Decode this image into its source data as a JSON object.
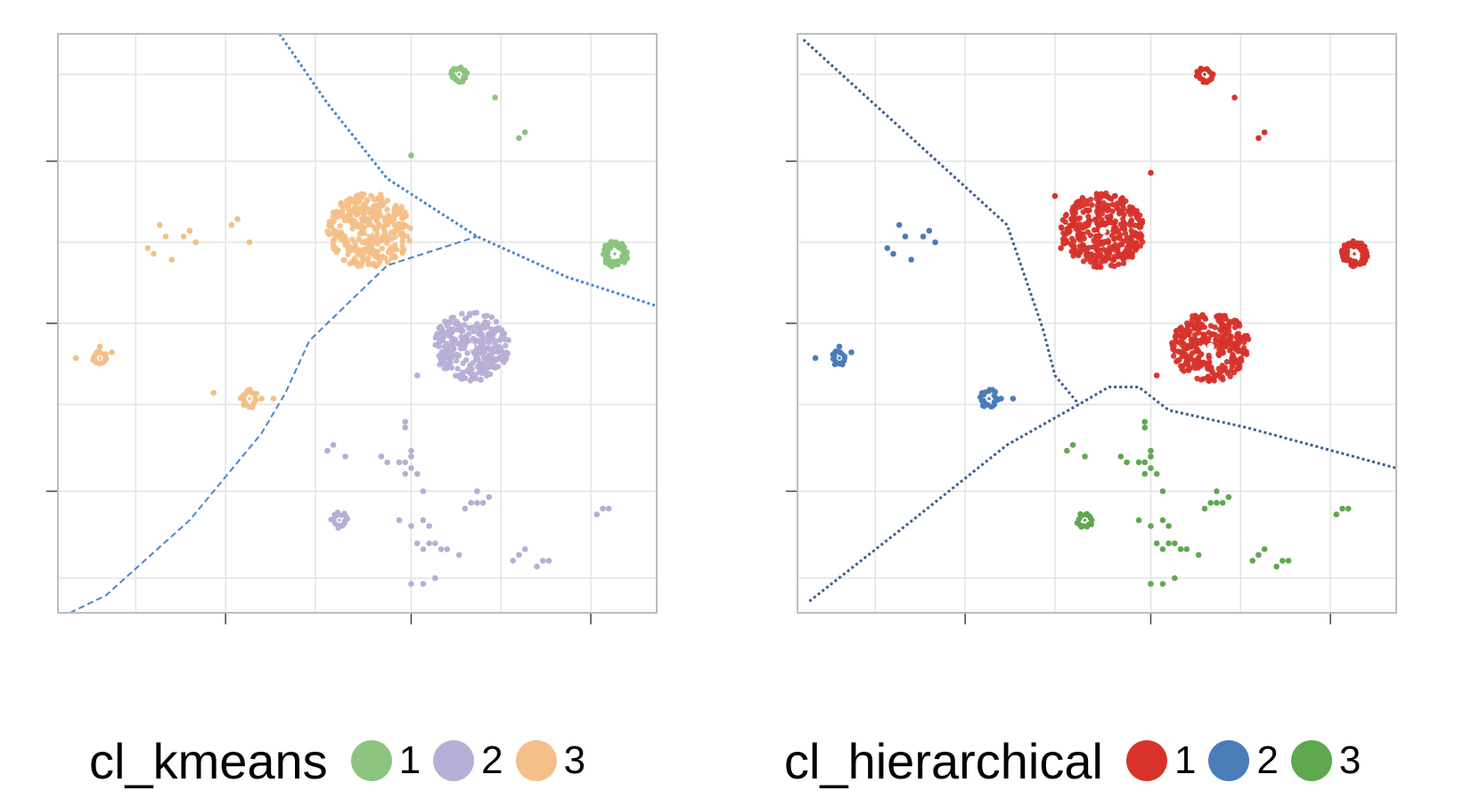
{
  "colors": {
    "kmeans_1": "#8cc47f",
    "kmeans_2": "#b7aed6",
    "kmeans_3": "#f4bf88",
    "hier_1": "#d7332b",
    "hier_2": "#4a7db8",
    "hier_3": "#5fa84f",
    "boundary": "#4a86c8",
    "boundary_dark": "#3c5f8c",
    "grid": "#e3e3e3",
    "panel_border": "#bdbdbd"
  },
  "chart_data": [
    {
      "type": "scatter",
      "title": "",
      "xlabel": "",
      "ylabel": "",
      "grid": true,
      "axis_tick_labels": "none",
      "legend": {
        "position": "bottom",
        "title": "cl_kmeans",
        "entries": [
          {
            "label": "1",
            "color": "#8cc47f"
          },
          {
            "label": "2",
            "color": "#b7aed6"
          },
          {
            "label": "3",
            "color": "#f4bf88"
          }
        ]
      },
      "clusters": [
        {
          "label": "3",
          "shape": "blob",
          "cx": 0.52,
          "cy": 0.66,
          "r": 0.07,
          "n": 350
        },
        {
          "label": "2",
          "shape": "blob",
          "cx": 0.69,
          "cy": 0.46,
          "r": 0.065,
          "n": 300
        },
        {
          "label": "1",
          "shape": "ring",
          "cx": 0.93,
          "cy": 0.62,
          "r": 0.022,
          "n": 70
        },
        {
          "label": "1",
          "shape": "ring",
          "cx": 0.67,
          "cy": 0.93,
          "r": 0.014,
          "n": 22
        },
        {
          "label": "3",
          "shape": "ring",
          "cx": 0.07,
          "cy": 0.44,
          "r": 0.013,
          "n": 18
        },
        {
          "label": "3",
          "shape": "ring",
          "cx": 0.32,
          "cy": 0.37,
          "r": 0.016,
          "n": 20
        },
        {
          "label": "2",
          "shape": "ring",
          "cx": 0.47,
          "cy": 0.16,
          "r": 0.014,
          "n": 16
        }
      ],
      "stray_points": [
        {
          "label": "1",
          "points": [
            [
              0.73,
              0.89
            ],
            [
              0.77,
              0.82
            ],
            [
              0.78,
              0.83
            ],
            [
              0.59,
              0.79
            ]
          ]
        },
        {
          "label": "3",
          "points": [
            [
              0.15,
              0.63
            ],
            [
              0.16,
              0.62
            ],
            [
              0.17,
              0.67
            ],
            [
              0.18,
              0.65
            ],
            [
              0.19,
              0.61
            ],
            [
              0.21,
              0.65
            ],
            [
              0.22,
              0.66
            ],
            [
              0.23,
              0.64
            ],
            [
              0.07,
              0.46
            ],
            [
              0.09,
              0.45
            ],
            [
              0.03,
              0.44
            ],
            [
              0.34,
              0.37
            ],
            [
              0.36,
              0.37
            ],
            [
              0.26,
              0.38
            ],
            [
              0.29,
              0.67
            ],
            [
              0.3,
              0.68
            ],
            [
              0.32,
              0.64
            ]
          ]
        },
        {
          "label": "2",
          "points": [
            [
              0.58,
              0.33
            ],
            [
              0.58,
              0.32
            ],
            [
              0.59,
              0.28
            ],
            [
              0.58,
              0.26
            ],
            [
              0.59,
              0.25
            ],
            [
              0.59,
              0.27
            ],
            [
              0.61,
              0.21
            ],
            [
              0.57,
              0.16
            ],
            [
              0.59,
              0.15
            ],
            [
              0.61,
              0.16
            ],
            [
              0.62,
              0.15
            ],
            [
              0.6,
              0.12
            ],
            [
              0.61,
              0.11
            ],
            [
              0.62,
              0.12
            ],
            [
              0.63,
              0.12
            ],
            [
              0.64,
              0.11
            ],
            [
              0.65,
              0.11
            ],
            [
              0.67,
              0.1
            ],
            [
              0.68,
              0.18
            ],
            [
              0.69,
              0.19
            ],
            [
              0.7,
              0.19
            ],
            [
              0.71,
              0.19
            ],
            [
              0.72,
              0.2
            ],
            [
              0.7,
              0.21
            ],
            [
              0.76,
              0.09
            ],
            [
              0.77,
              0.1
            ],
            [
              0.78,
              0.11
            ],
            [
              0.8,
              0.08
            ],
            [
              0.81,
              0.09
            ],
            [
              0.82,
              0.09
            ],
            [
              0.59,
              0.05
            ],
            [
              0.61,
              0.05
            ],
            [
              0.63,
              0.06
            ],
            [
              0.54,
              0.27
            ],
            [
              0.55,
              0.26
            ],
            [
              0.57,
              0.26
            ],
            [
              0.58,
              0.24
            ],
            [
              0.6,
              0.24
            ],
            [
              0.45,
              0.28
            ],
            [
              0.46,
              0.29
            ],
            [
              0.48,
              0.27
            ],
            [
              0.9,
              0.17
            ],
            [
              0.91,
              0.18
            ],
            [
              0.92,
              0.18
            ],
            [
              0.6,
              0.41
            ]
          ]
        }
      ],
      "boundaries": [
        {
          "style": "dotted",
          "points": [
            [
              0.37,
              1.0
            ],
            [
              0.45,
              0.88
            ],
            [
              0.55,
              0.75
            ],
            [
              0.7,
              0.65
            ],
            [
              0.85,
              0.58
            ],
            [
              1.0,
              0.53
            ]
          ]
        },
        {
          "style": "dashed",
          "points": [
            [
              0.02,
              0.0
            ],
            [
              0.08,
              0.03
            ],
            [
              0.22,
              0.16
            ],
            [
              0.34,
              0.31
            ],
            [
              0.38,
              0.38
            ],
            [
              0.42,
              0.47
            ],
            [
              0.55,
              0.6
            ],
            [
              0.7,
              0.65
            ]
          ]
        }
      ]
    },
    {
      "type": "scatter",
      "title": "",
      "xlabel": "",
      "ylabel": "",
      "grid": true,
      "axis_tick_labels": "none",
      "legend": {
        "position": "bottom",
        "title": "cl_hierarchical",
        "entries": [
          {
            "label": "1",
            "color": "#d7332b"
          },
          {
            "label": "2",
            "color": "#4a7db8"
          },
          {
            "label": "3",
            "color": "#5fa84f"
          }
        ]
      },
      "clusters": [
        {
          "label": "1",
          "shape": "blob",
          "cx": 0.51,
          "cy": 0.66,
          "r": 0.07,
          "n": 350
        },
        {
          "label": "1",
          "shape": "blob",
          "cx": 0.69,
          "cy": 0.46,
          "r": 0.065,
          "n": 300
        },
        {
          "label": "1",
          "shape": "ring",
          "cx": 0.93,
          "cy": 0.62,
          "r": 0.022,
          "n": 70
        },
        {
          "label": "1",
          "shape": "ring",
          "cx": 0.68,
          "cy": 0.93,
          "r": 0.014,
          "n": 22
        },
        {
          "label": "2",
          "shape": "ring",
          "cx": 0.07,
          "cy": 0.44,
          "r": 0.013,
          "n": 18
        },
        {
          "label": "2",
          "shape": "ring",
          "cx": 0.32,
          "cy": 0.37,
          "r": 0.016,
          "n": 20
        },
        {
          "label": "3",
          "shape": "ring",
          "cx": 0.48,
          "cy": 0.16,
          "r": 0.014,
          "n": 16
        }
      ],
      "stray_points": [
        {
          "label": "1",
          "points": [
            [
              0.73,
              0.89
            ],
            [
              0.77,
              0.82
            ],
            [
              0.78,
              0.83
            ],
            [
              0.59,
              0.76
            ],
            [
              0.44,
              0.63
            ],
            [
              0.43,
              0.72
            ],
            [
              0.6,
              0.41
            ]
          ]
        },
        {
          "label": "2",
          "points": [
            [
              0.15,
              0.63
            ],
            [
              0.16,
              0.62
            ],
            [
              0.17,
              0.67
            ],
            [
              0.18,
              0.65
            ],
            [
              0.19,
              0.61
            ],
            [
              0.21,
              0.65
            ],
            [
              0.22,
              0.66
            ],
            [
              0.23,
              0.64
            ],
            [
              0.07,
              0.46
            ],
            [
              0.09,
              0.45
            ],
            [
              0.03,
              0.44
            ],
            [
              0.34,
              0.37
            ],
            [
              0.36,
              0.37
            ]
          ]
        },
        {
          "label": "3",
          "points": [
            [
              0.58,
              0.33
            ],
            [
              0.58,
              0.32
            ],
            [
              0.59,
              0.28
            ],
            [
              0.58,
              0.26
            ],
            [
              0.59,
              0.25
            ],
            [
              0.59,
              0.27
            ],
            [
              0.61,
              0.21
            ],
            [
              0.57,
              0.16
            ],
            [
              0.59,
              0.15
            ],
            [
              0.61,
              0.16
            ],
            [
              0.62,
              0.15
            ],
            [
              0.6,
              0.12
            ],
            [
              0.61,
              0.11
            ],
            [
              0.62,
              0.12
            ],
            [
              0.63,
              0.12
            ],
            [
              0.64,
              0.11
            ],
            [
              0.65,
              0.11
            ],
            [
              0.67,
              0.1
            ],
            [
              0.68,
              0.18
            ],
            [
              0.69,
              0.19
            ],
            [
              0.7,
              0.19
            ],
            [
              0.71,
              0.19
            ],
            [
              0.72,
              0.2
            ],
            [
              0.7,
              0.21
            ],
            [
              0.76,
              0.09
            ],
            [
              0.77,
              0.1
            ],
            [
              0.78,
              0.11
            ],
            [
              0.8,
              0.08
            ],
            [
              0.81,
              0.09
            ],
            [
              0.82,
              0.09
            ],
            [
              0.59,
              0.05
            ],
            [
              0.61,
              0.05
            ],
            [
              0.63,
              0.06
            ],
            [
              0.54,
              0.27
            ],
            [
              0.55,
              0.26
            ],
            [
              0.57,
              0.26
            ],
            [
              0.58,
              0.24
            ],
            [
              0.6,
              0.24
            ],
            [
              0.45,
              0.28
            ],
            [
              0.46,
              0.29
            ],
            [
              0.48,
              0.27
            ],
            [
              0.9,
              0.17
            ],
            [
              0.91,
              0.18
            ],
            [
              0.92,
              0.18
            ]
          ]
        }
      ],
      "boundaries": [
        {
          "style": "dotted",
          "points": [
            [
              0.01,
              0.99
            ],
            [
              0.35,
              0.67
            ],
            [
              0.38,
              0.58
            ],
            [
              0.41,
              0.49
            ],
            [
              0.43,
              0.41
            ],
            [
              0.47,
              0.36
            ]
          ]
        },
        {
          "style": "dotted",
          "points": [
            [
              0.02,
              0.02
            ],
            [
              0.18,
              0.15
            ],
            [
              0.35,
              0.29
            ],
            [
              0.47,
              0.36
            ],
            [
              0.52,
              0.39
            ],
            [
              0.57,
              0.39
            ],
            [
              0.62,
              0.35
            ],
            [
              0.75,
              0.32
            ],
            [
              1.0,
              0.25
            ]
          ]
        }
      ]
    }
  ]
}
